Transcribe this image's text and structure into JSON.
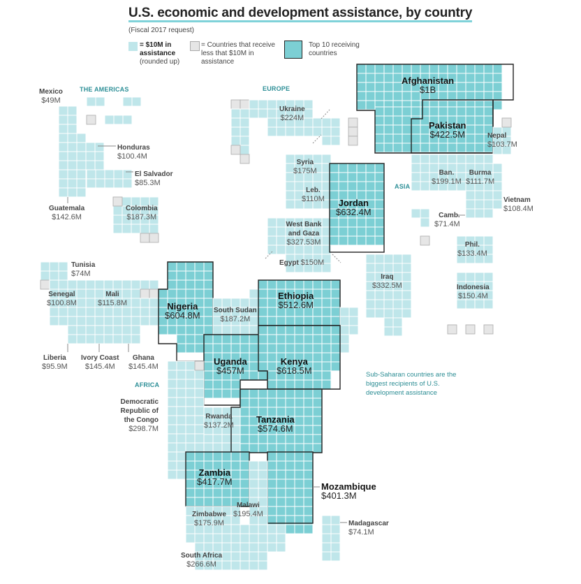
{
  "title": "U.S. economic and development assistance, by country",
  "subtitle": "(Fiscal 2017 request)",
  "colors": {
    "tile": "#bfe6ea",
    "tile_stroke": "#ffffff",
    "top": "#7ccfd4",
    "top_stroke": "#222222",
    "small": "#e6e6e6",
    "small_stroke": "#aaaaaa",
    "region": "#2d8f97"
  },
  "legend": {
    "tile_label": "= $10M in assistance",
    "tile_note": "(rounded up)",
    "small_label": "= Countries that receive less that $10M in assistance",
    "top_label": "Top 10 receiving countries"
  },
  "regions": {
    "americas": "THE AMERICAS",
    "europe": "EUROPE",
    "asia": "ASIA",
    "africa": "AFRICA"
  },
  "note": "Sub-Saharan countries are the biggest recipients of U.S. development assistance",
  "countries": [
    {
      "name": "Mexico",
      "value": "$49M",
      "top": false
    },
    {
      "name": "Honduras",
      "value": "$100.4M",
      "top": false
    },
    {
      "name": "El Salvador",
      "value": "$85.3M",
      "top": false
    },
    {
      "name": "Guatemala",
      "value": "$142.6M",
      "top": false
    },
    {
      "name": "Colombia",
      "value": "$187.3M",
      "top": false
    },
    {
      "name": "Ukraine",
      "value": "$224M",
      "top": false
    },
    {
      "name": "Afghanistan",
      "value": "$1B",
      "top": true
    },
    {
      "name": "Pakistan",
      "value": "$422.5M",
      "top": true
    },
    {
      "name": "Nepal",
      "value": "$103.7M",
      "top": false
    },
    {
      "name": "Syria",
      "value": "$175M",
      "top": false
    },
    {
      "name": "Leb.",
      "value": "$110M",
      "top": false
    },
    {
      "name": "Jordan",
      "value": "$632.4M",
      "top": true
    },
    {
      "name": "Ban.",
      "value": "$199.1M",
      "top": false
    },
    {
      "name": "Burma",
      "value": "$111.7M",
      "top": false
    },
    {
      "name": "Vietnam",
      "value": "$108.4M",
      "top": false
    },
    {
      "name": "West Bank and Gaza",
      "value": "$327.53M",
      "top": false
    },
    {
      "name": "Camb.",
      "value": "$71.4M",
      "top": false
    },
    {
      "name": "Phil.",
      "value": "$133.4M",
      "top": false
    },
    {
      "name": "Egypt",
      "value": "$150M",
      "top": false
    },
    {
      "name": "Iraq",
      "value": "$332.5M",
      "top": false
    },
    {
      "name": "Indonesia",
      "value": "$150.4M",
      "top": false
    },
    {
      "name": "Tunisia",
      "value": "$74M",
      "top": false
    },
    {
      "name": "Senegal",
      "value": "$100.8M",
      "top": false
    },
    {
      "name": "Mali",
      "value": "$115.8M",
      "top": false
    },
    {
      "name": "Nigeria",
      "value": "$604.8M",
      "top": true
    },
    {
      "name": "South Sudan",
      "value": "$187.2M",
      "top": false
    },
    {
      "name": "Ethiopia",
      "value": "$512.6M",
      "top": true
    },
    {
      "name": "Liberia",
      "value": "$95.9M",
      "top": false
    },
    {
      "name": "Ivory Coast",
      "value": "$145.4M",
      "top": false
    },
    {
      "name": "Ghana",
      "value": "$145.4M",
      "top": false
    },
    {
      "name": "Uganda",
      "value": "$457M",
      "top": true
    },
    {
      "name": "Kenya",
      "value": "$618.5M",
      "top": true
    },
    {
      "name": "Democratic Republic of the Congo",
      "value": "$298.7M",
      "top": false
    },
    {
      "name": "Rwanda",
      "value": "$137.2M",
      "top": false
    },
    {
      "name": "Tanzania",
      "value": "$574.6M",
      "top": true
    },
    {
      "name": "Zambia",
      "value": "$417.7M",
      "top": true
    },
    {
      "name": "Mozambique",
      "value": "$401.3M",
      "top": true
    },
    {
      "name": "Malawi",
      "value": "$195.4M",
      "top": false
    },
    {
      "name": "Zimbabwe",
      "value": "$175.9M",
      "top": false
    },
    {
      "name": "Madagascar",
      "value": "$74.1M",
      "top": false
    },
    {
      "name": "South Africa",
      "value": "$266.6M",
      "top": false
    }
  ]
}
